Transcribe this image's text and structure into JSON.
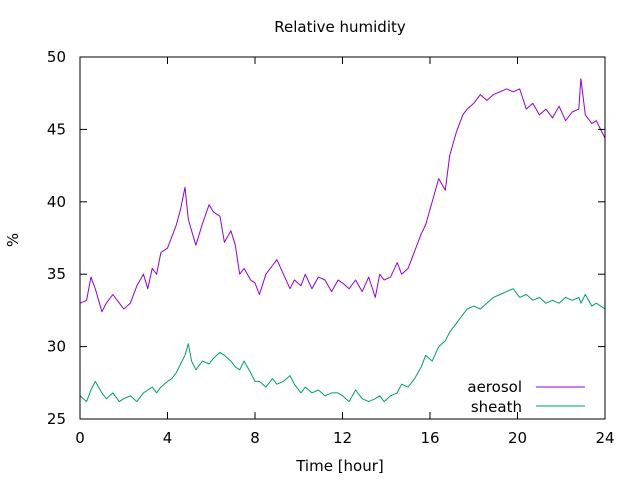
{
  "chart_data": {
    "type": "line",
    "title": "Relative humidity",
    "xlabel": "Time [hour]",
    "ylabel": "%",
    "xlim": [
      0,
      24
    ],
    "ylim": [
      25,
      50
    ],
    "x_ticks": [
      0,
      4,
      8,
      12,
      16,
      20,
      24
    ],
    "y_ticks": [
      25,
      30,
      35,
      40,
      45,
      50
    ],
    "grid": false,
    "legend_position": "bottom-right",
    "series": [
      {
        "name": "aerosol",
        "color": "#9400d3",
        "x": [
          0,
          0.3,
          0.5,
          0.7,
          1.0,
          1.2,
          1.5,
          1.8,
          2.0,
          2.3,
          2.6,
          2.9,
          3.1,
          3.3,
          3.5,
          3.7,
          4.0,
          4.2,
          4.4,
          4.6,
          4.8,
          4.95,
          5.1,
          5.3,
          5.6,
          5.9,
          6.1,
          6.4,
          6.6,
          6.9,
          7.1,
          7.3,
          7.5,
          7.8,
          8.0,
          8.2,
          8.5,
          8.8,
          9.0,
          9.3,
          9.6,
          9.8,
          10.1,
          10.3,
          10.6,
          10.9,
          11.2,
          11.5,
          11.8,
          12.0,
          12.3,
          12.6,
          12.9,
          13.2,
          13.5,
          13.7,
          13.9,
          14.2,
          14.5,
          14.7,
          15.0,
          15.3,
          15.6,
          15.8,
          16.1,
          16.4,
          16.7,
          16.9,
          17.2,
          17.5,
          17.7,
          18.0,
          18.3,
          18.6,
          18.9,
          19.2,
          19.5,
          19.8,
          20.1,
          20.4,
          20.7,
          21.0,
          21.3,
          21.6,
          21.9,
          22.2,
          22.5,
          22.8,
          22.9,
          23.1,
          23.4,
          23.6,
          23.8,
          24.0
        ],
        "values": [
          33.0,
          33.2,
          34.8,
          34.0,
          32.4,
          33.0,
          33.6,
          33.0,
          32.6,
          33.0,
          34.2,
          35.0,
          34.0,
          35.4,
          35.0,
          36.5,
          36.8,
          37.6,
          38.4,
          39.5,
          41.0,
          38.8,
          38.0,
          37.0,
          38.5,
          39.8,
          39.3,
          39.0,
          37.2,
          38.0,
          37.0,
          35.0,
          35.4,
          34.6,
          34.4,
          33.6,
          35.0,
          35.6,
          36.0,
          35.0,
          34.0,
          34.6,
          34.2,
          35.0,
          34.0,
          34.8,
          34.6,
          33.8,
          34.6,
          34.4,
          34.0,
          34.6,
          33.8,
          34.8,
          33.4,
          35.0,
          34.6,
          34.8,
          35.8,
          35.0,
          35.4,
          36.6,
          37.8,
          38.4,
          40.0,
          41.6,
          40.8,
          43.2,
          44.8,
          46.0,
          46.4,
          46.8,
          47.4,
          47.0,
          47.4,
          47.6,
          47.8,
          47.6,
          47.8,
          46.4,
          46.8,
          46.0,
          46.4,
          45.8,
          46.6,
          45.6,
          46.2,
          46.4,
          48.5,
          46.0,
          45.4,
          45.6,
          45.0,
          44.4
        ]
      },
      {
        "name": "sheath",
        "color": "#009e73",
        "x": [
          0,
          0.3,
          0.5,
          0.7,
          1.0,
          1.2,
          1.5,
          1.8,
          2.0,
          2.3,
          2.6,
          2.9,
          3.1,
          3.3,
          3.5,
          3.7,
          4.0,
          4.2,
          4.4,
          4.6,
          4.8,
          4.95,
          5.1,
          5.3,
          5.6,
          5.9,
          6.1,
          6.4,
          6.6,
          6.9,
          7.1,
          7.3,
          7.5,
          7.8,
          8.0,
          8.2,
          8.5,
          8.8,
          9.0,
          9.3,
          9.6,
          9.8,
          10.1,
          10.3,
          10.6,
          10.9,
          11.2,
          11.5,
          11.8,
          12.0,
          12.3,
          12.6,
          12.9,
          13.2,
          13.5,
          13.7,
          13.9,
          14.2,
          14.5,
          14.7,
          15.0,
          15.3,
          15.6,
          15.8,
          16.1,
          16.4,
          16.7,
          16.9,
          17.2,
          17.5,
          17.7,
          18.0,
          18.3,
          18.6,
          18.9,
          19.2,
          19.5,
          19.8,
          20.1,
          20.4,
          20.7,
          21.0,
          21.3,
          21.6,
          21.9,
          22.2,
          22.5,
          22.8,
          22.9,
          23.1,
          23.4,
          23.6,
          23.8,
          24.0
        ],
        "values": [
          26.6,
          26.2,
          27.0,
          27.6,
          26.8,
          26.4,
          26.8,
          26.2,
          26.4,
          26.6,
          26.2,
          26.8,
          27.0,
          27.2,
          26.8,
          27.2,
          27.6,
          27.8,
          28.2,
          28.8,
          29.4,
          30.2,
          29.0,
          28.4,
          29.0,
          28.8,
          29.2,
          29.6,
          29.4,
          29.0,
          28.6,
          28.4,
          29.0,
          28.2,
          27.6,
          27.6,
          27.2,
          27.8,
          27.4,
          27.6,
          28.0,
          27.4,
          26.8,
          27.2,
          26.8,
          27.0,
          26.6,
          26.8,
          26.8,
          26.6,
          26.2,
          27.0,
          26.4,
          26.2,
          26.4,
          26.6,
          26.2,
          26.6,
          26.8,
          27.4,
          27.2,
          27.8,
          28.6,
          29.4,
          29.0,
          30.0,
          30.4,
          31.0,
          31.6,
          32.2,
          32.6,
          32.8,
          32.6,
          33.0,
          33.4,
          33.6,
          33.8,
          34.0,
          33.4,
          33.6,
          33.2,
          33.4,
          33.0,
          33.2,
          33.0,
          33.4,
          33.2,
          33.4,
          33.0,
          33.6,
          32.8,
          33.0,
          32.8,
          32.6
        ]
      }
    ]
  }
}
